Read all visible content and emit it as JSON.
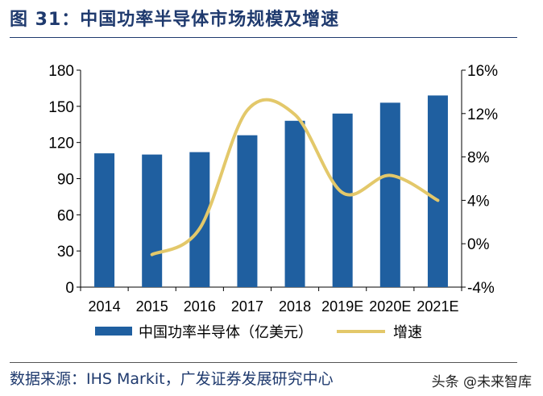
{
  "title": "图 31：中国功率半导体市场规模及增速",
  "source": "数据来源：IHS Markit，广发证券发展研究中心",
  "watermark": "头条 @未来智库",
  "chart_data": {
    "type": "bar",
    "categories": [
      "2014",
      "2015",
      "2016",
      "2017",
      "2018",
      "2019E",
      "2020E",
      "2021E"
    ],
    "series": [
      {
        "name": "中国功率半导体（亿美元）",
        "type": "bar",
        "axis": "left",
        "color": "#1F5FA0",
        "values": [
          111,
          110,
          112,
          126,
          138,
          144,
          153,
          159
        ]
      },
      {
        "name": "增速",
        "type": "line",
        "axis": "right",
        "color": "#E3C86A",
        "values": [
          null,
          -1.0,
          1.4,
          12.3,
          11.9,
          4.7,
          6.3,
          4.0
        ]
      }
    ],
    "left_axis": {
      "min": 0,
      "max": 180,
      "ticks": [
        "0",
        "30",
        "60",
        "90",
        "120",
        "150",
        "180"
      ]
    },
    "right_axis": {
      "min": -4,
      "max": 16,
      "ticks": [
        "-4%",
        "0%",
        "4%",
        "8%",
        "12%",
        "16%"
      ]
    },
    "legend_position": "bottom",
    "grid": false
  }
}
